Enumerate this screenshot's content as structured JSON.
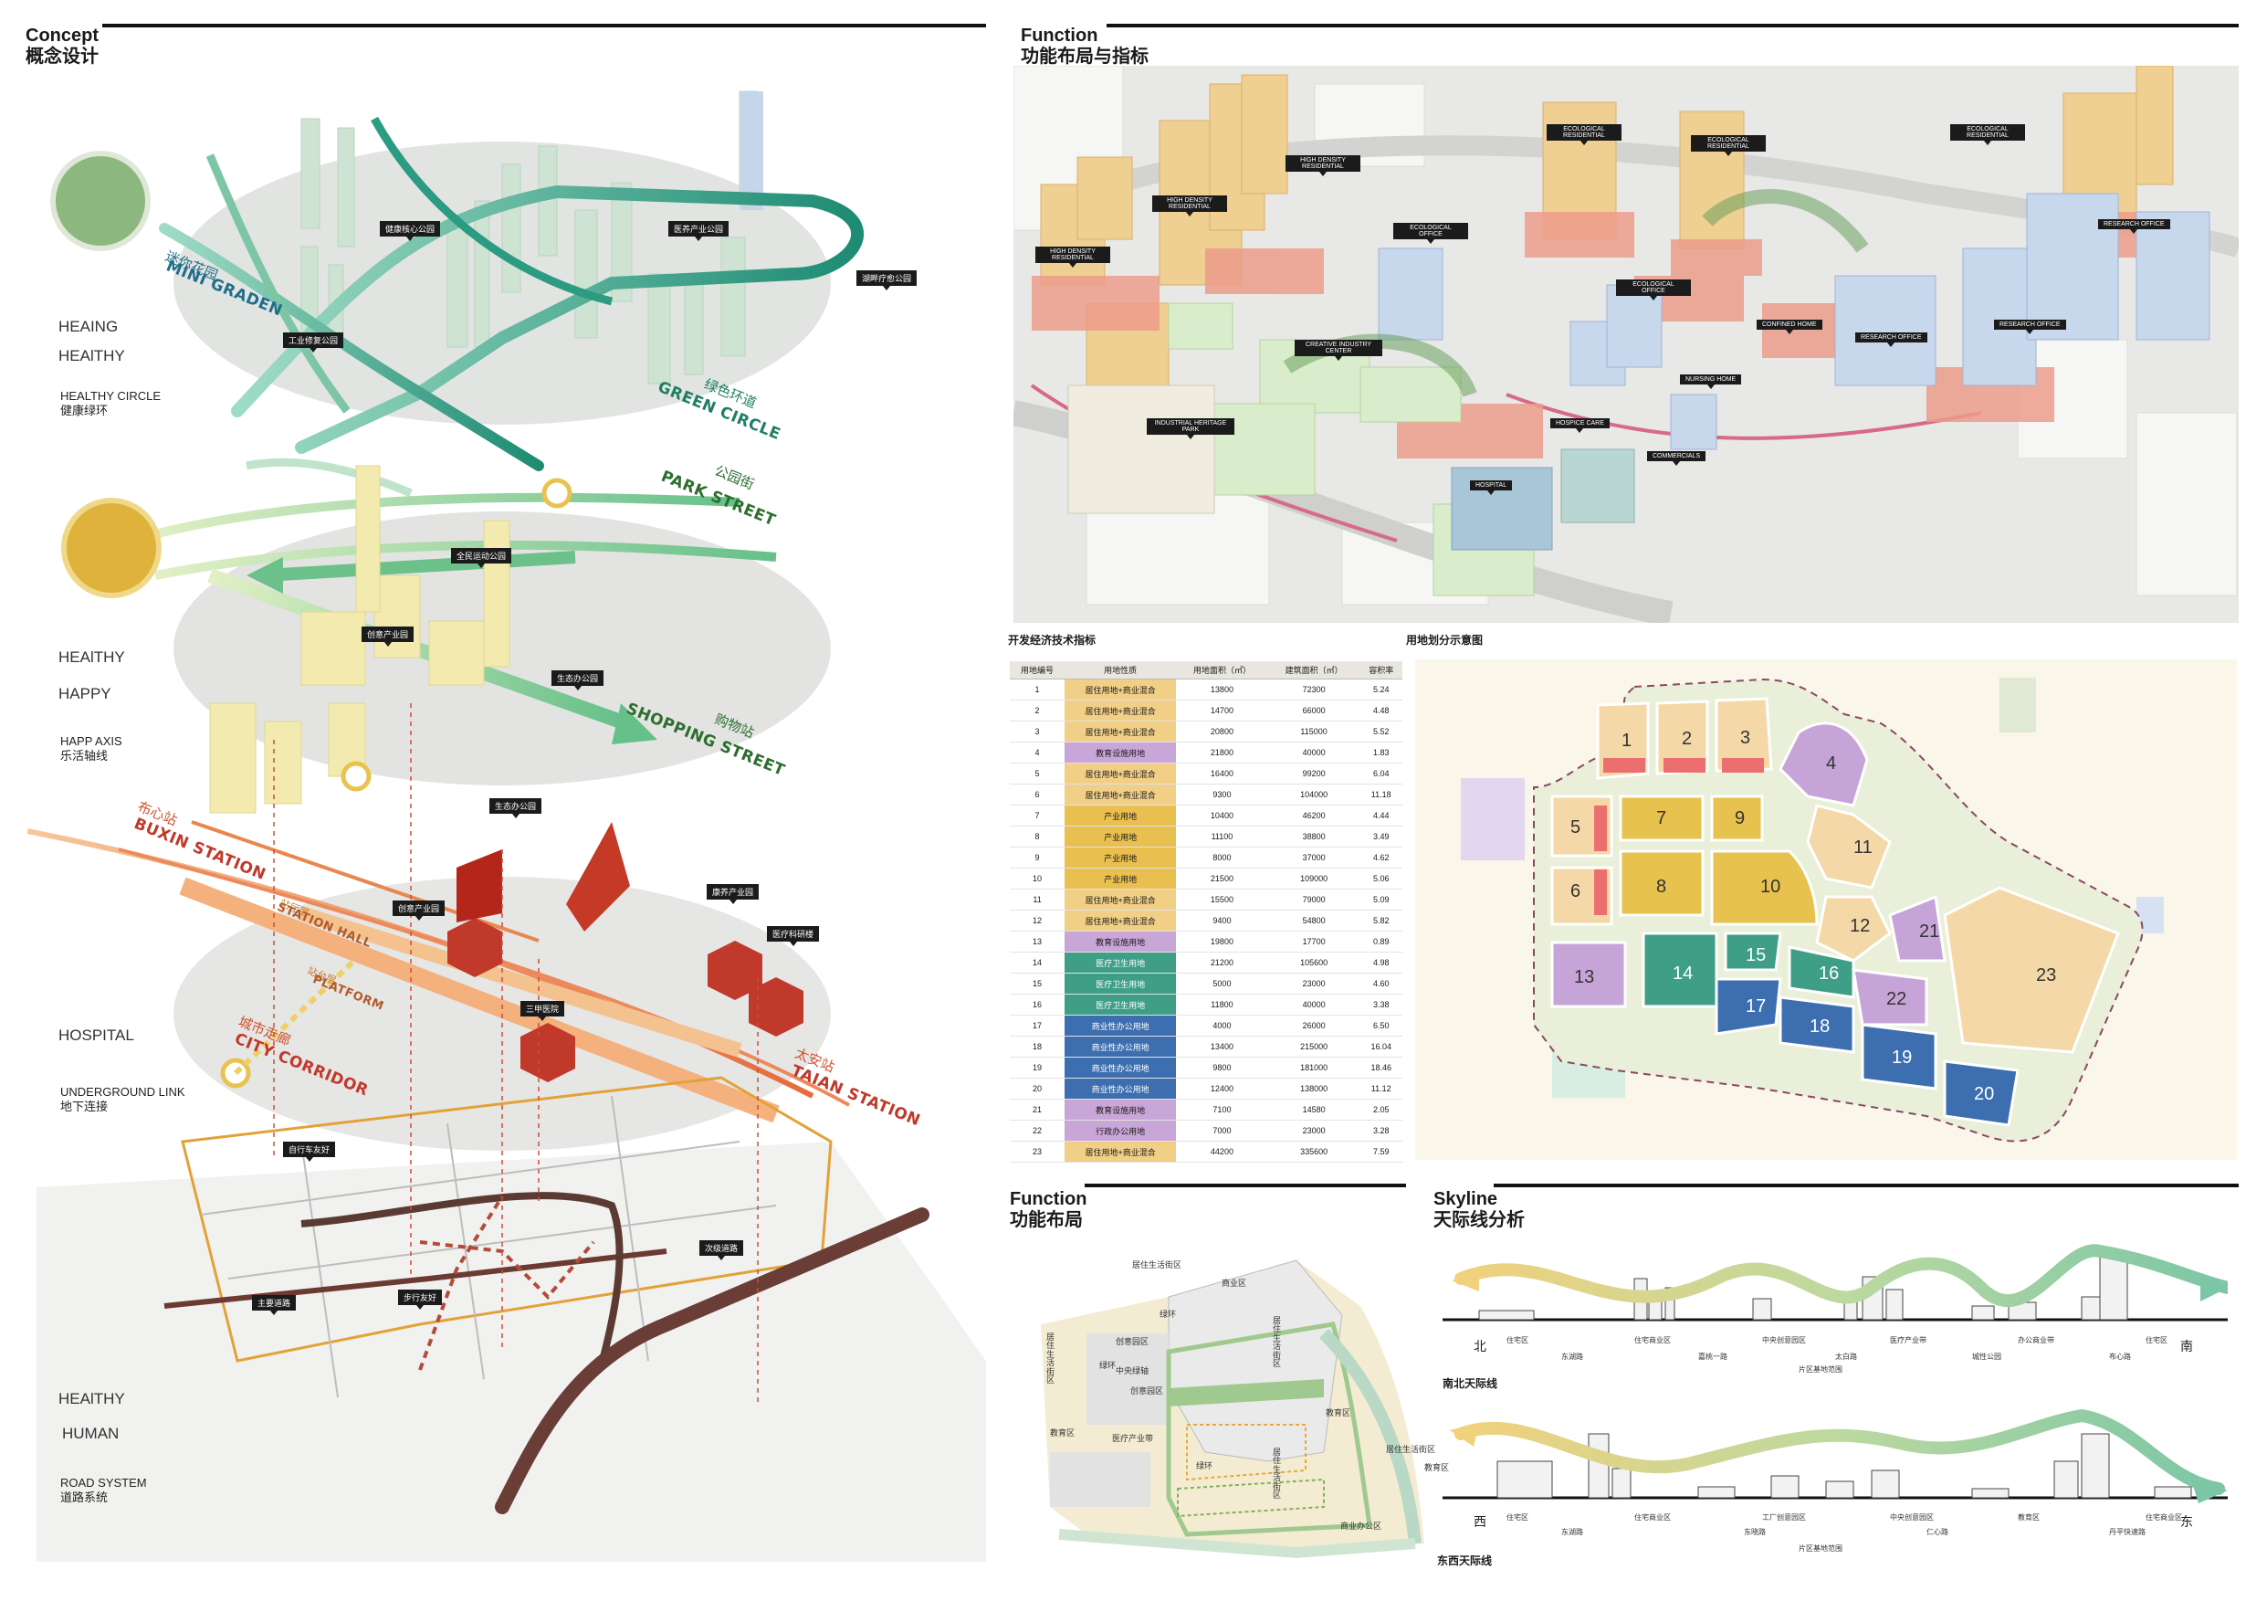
{
  "concept": {
    "title_en": "Concept",
    "title_cn": "概念设计",
    "layers": [
      {
        "word1": "HEAING",
        "word2": "HEAlTHY",
        "sub_en": "HEALTHY CIRCLE",
        "sub_cn": "健康绿环"
      },
      {
        "word1": "HEAlTHY",
        "word2": "HAPPY",
        "sub_en": "HAPP AXIS",
        "sub_cn": "乐活轴线"
      },
      {
        "word1": "HOSPITAL",
        "word2": "",
        "sub_en": "UNDERGROUND LINK",
        "sub_cn": "地下连接"
      },
      {
        "word1": "HEAlTHY",
        "word2": "HUMAN",
        "sub_en": "ROAD SYSTEM",
        "sub_cn": "道路系统"
      }
    ],
    "big_labels": [
      {
        "cn": "迷你花园",
        "en": "MINI GRADEN"
      },
      {
        "cn": "绿色环道",
        "en": "GREEN CIRCLE"
      },
      {
        "cn": "公园街",
        "en": "PARK STREET"
      },
      {
        "cn": "购物站",
        "en": "SHOPPING STREET"
      },
      {
        "cn": "布心站",
        "en": "BUXIN STATION"
      },
      {
        "cn": "城市走廊",
        "en": "CITY CORRIDOR"
      },
      {
        "cn": "太安站",
        "en": "TAIAN STATION"
      },
      {
        "cn": "站厅层",
        "en": "STATION HALL"
      },
      {
        "cn": "站台层",
        "en": "PLATFORM"
      }
    ],
    "tags": [
      "健康核心公园",
      "医养产业公园",
      "湖畔疗愈公园",
      "工业修复公园",
      "全民运动公园",
      "创意产业园",
      "生态办公园",
      "生态办公园",
      "创意产业园",
      "康养产业园",
      "医疗科研楼",
      "三甲医院",
      "自行车友好",
      "次级道路",
      "主要道路",
      "步行友好"
    ]
  },
  "function_top": {
    "title_en": "Function",
    "title_cn": "功能布局与指标",
    "tags": [
      "HIGH DENSITY RESIDENTIAL",
      "HIGH DENSITY RESIDENTIAL",
      "HIGH DENSITY RESIDENTIAL",
      "ECOLOGICAL RESIDENTIAL",
      "ECOLOGICAL RESIDENTIAL",
      "ECOLOGICAL RESIDENTIAL",
      "ECOLOGICAL OFFICE",
      "ECOLOGICAL OFFICE",
      "RESEARCH OFFICE",
      "RESEARCH OFFICE",
      "RESEARCH OFFICE",
      "CREATIVE INDUSTRY CENTER",
      "INDUSTRIAL HERITAGE PARK",
      "CONFINED HOME",
      "NURSING HOME",
      "HOSPICE CARE",
      "COMMERCIALS",
      "HOSPITAL"
    ]
  },
  "indicator_table": {
    "caption": "开发经济技术指标",
    "headers": [
      "用地编号",
      "用地性质",
      "用地面积（㎡）",
      "建筑面积（㎡）",
      "容积率"
    ],
    "rows": [
      [
        "1",
        "居住用地+商业混合",
        "13800",
        "72300",
        "5.24"
      ],
      [
        "2",
        "居住用地+商业混合",
        "14700",
        "66000",
        "4.48"
      ],
      [
        "3",
        "居住用地+商业混合",
        "20800",
        "115000",
        "5.52"
      ],
      [
        "4",
        "教育设施用地",
        "21800",
        "40000",
        "1.83"
      ],
      [
        "5",
        "居住用地+商业混合",
        "16400",
        "99200",
        "6.04"
      ],
      [
        "6",
        "居住用地+商业混合",
        "9300",
        "104000",
        "11.18"
      ],
      [
        "7",
        "产业用地",
        "10400",
        "46200",
        "4.44"
      ],
      [
        "8",
        "产业用地",
        "11100",
        "38800",
        "3.49"
      ],
      [
        "9",
        "产业用地",
        "8000",
        "37000",
        "4.62"
      ],
      [
        "10",
        "产业用地",
        "21500",
        "109000",
        "5.06"
      ],
      [
        "11",
        "居住用地+商业混合",
        "15500",
        "79000",
        "5.09"
      ],
      [
        "12",
        "居住用地+商业混合",
        "9400",
        "54800",
        "5.82"
      ],
      [
        "13",
        "教育设施用地",
        "19800",
        "17700",
        "0.89"
      ],
      [
        "14",
        "医疗卫生用地",
        "21200",
        "105600",
        "4.98"
      ],
      [
        "15",
        "医疗卫生用地",
        "5000",
        "23000",
        "4.60"
      ],
      [
        "16",
        "医疗卫生用地",
        "11800",
        "40000",
        "3.38"
      ],
      [
        "17",
        "商业性办公用地",
        "4000",
        "26000",
        "6.50"
      ],
      [
        "18",
        "商业性办公用地",
        "13400",
        "215000",
        "16.04"
      ],
      [
        "19",
        "商业性办公用地",
        "9800",
        "181000",
        "18.46"
      ],
      [
        "20",
        "商业性办公用地",
        "12400",
        "138000",
        "11.12"
      ],
      [
        "21",
        "教育设施用地",
        "7100",
        "14580",
        "2.05"
      ],
      [
        "22",
        "行政办公用地",
        "7000",
        "23000",
        "3.28"
      ],
      [
        "23",
        "居住用地+商业混合",
        "44200",
        "335600",
        "7.59"
      ]
    ],
    "type_colors": {
      "居住用地+商业混合": "#f1cf86",
      "教育设施用地": "#c9a6d8",
      "产业用地": "#e9bf4f",
      "医疗卫生用地": "#3e9f86",
      "商业性办公用地": "#3d6fb0",
      "行政办公用地": "#c9a6d8"
    }
  },
  "landuse_map": {
    "caption": "用地划分示意图",
    "plots": [
      "1",
      "2",
      "3",
      "4",
      "5",
      "6",
      "7",
      "8",
      "9",
      "10",
      "11",
      "12",
      "13",
      "14",
      "15",
      "16",
      "17",
      "18",
      "19",
      "20",
      "21",
      "22",
      "23"
    ]
  },
  "function_bottom": {
    "title_en": "Function",
    "title_cn": "功能布局",
    "labels": [
      "居住生活街区",
      "绿环",
      "创意园区",
      "中央绿轴",
      "创意园区",
      "居住生活街区",
      "绿环",
      "医疗产业带",
      "教育区",
      "商业区",
      "居住生活街区",
      "教育区",
      "居住生活街区",
      "绿环",
      "商业办公区",
      "居住生活街区",
      "教育区"
    ]
  },
  "skyline": {
    "title_en": "Skyline",
    "title_cn": "天际线分析",
    "ns": {
      "caption": "南北天际线",
      "left": "北",
      "right": "南",
      "top_labels": [
        "住宅区",
        "住宅商业区",
        "中央创意园区",
        "医疗产业带",
        "办公商业带",
        "住宅区"
      ],
      "bottom_labels": [
        "东湖路",
        "嘉桃一路",
        "太白路",
        "城性公园",
        "布心路"
      ],
      "range_label": "片区基地范围"
    },
    "ew": {
      "caption": "东西天际线",
      "left": "西",
      "right": "东",
      "top_labels": [
        "住宅区",
        "住宅商业区",
        "工厂创意园区",
        "中央创意园区",
        "教育区",
        "住宅商业区"
      ],
      "bottom_labels": [
        "东湖路",
        "东晓路",
        "仁心路",
        "丹平快速路"
      ],
      "range_label": "片区基地范围"
    }
  }
}
